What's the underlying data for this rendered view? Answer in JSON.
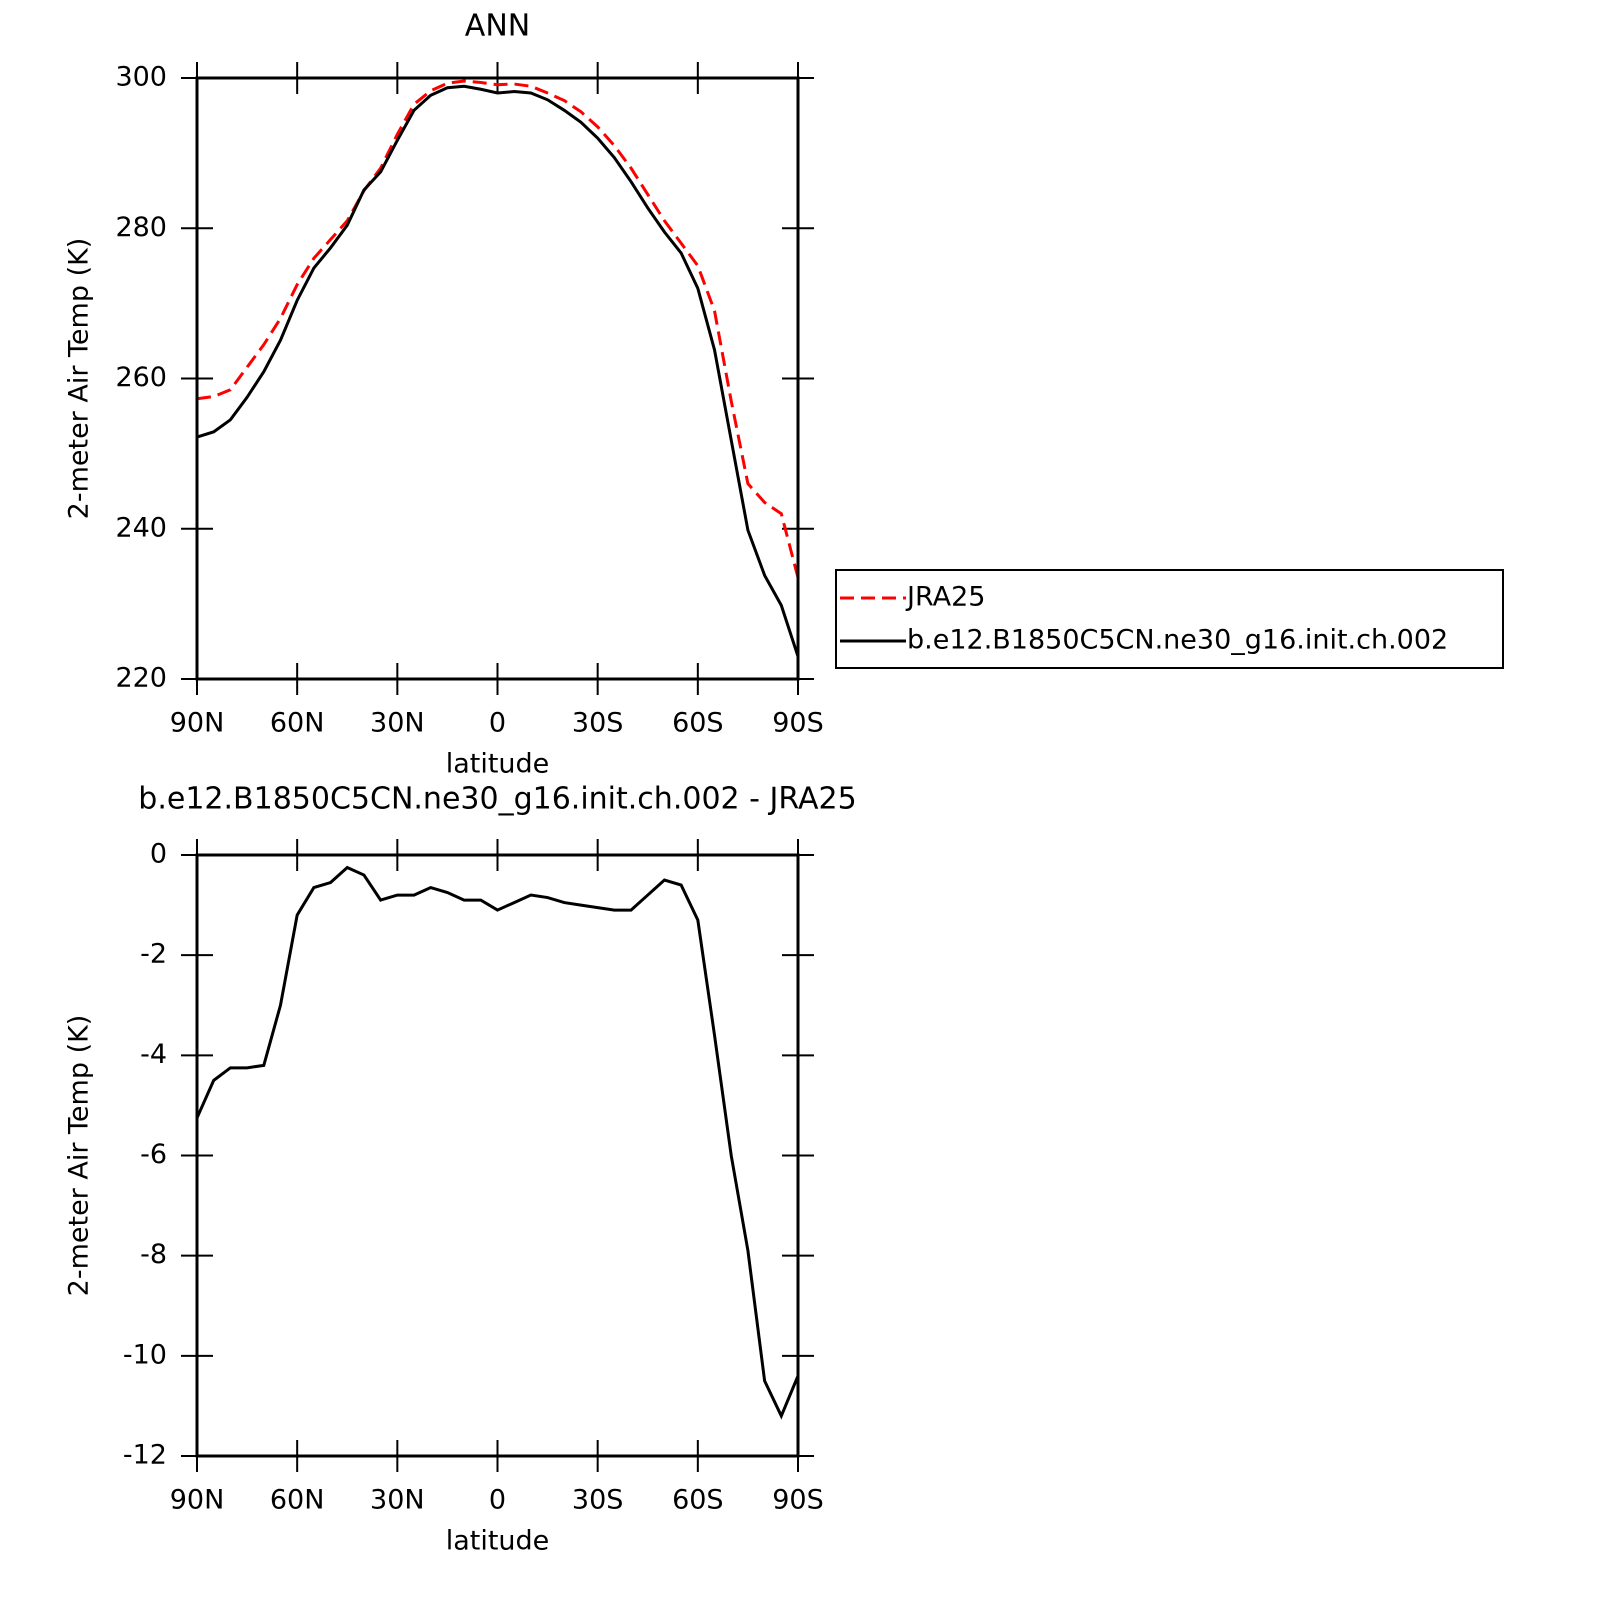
{
  "chart_data": [
    {
      "type": "line",
      "title": "ANN",
      "xlabel": "latitude",
      "ylabel": "2-meter Air Temp (K)",
      "x": [
        90,
        85,
        80,
        75,
        70,
        65,
        60,
        55,
        50,
        45,
        40,
        35,
        30,
        25,
        20,
        15,
        10,
        5,
        0,
        -5,
        -10,
        -15,
        -20,
        -25,
        -30,
        -35,
        -40,
        -45,
        -50,
        -55,
        -60,
        -65,
        -70,
        -75,
        -80,
        -85,
        -90
      ],
      "series": [
        {
          "name": "JRA25",
          "color": "#ff0000",
          "linestyle": "dashed",
          "values": [
            257.3,
            257.6,
            258.5,
            261.5,
            264.5,
            268,
            272.5,
            276,
            278.5,
            281,
            285,
            288,
            292.5,
            296.5,
            298.3,
            299.3,
            299.6,
            299.4,
            299.1,
            299.2,
            298.9,
            298,
            297,
            295.5,
            293.5,
            291,
            288,
            284.5,
            281,
            278,
            275,
            269,
            257,
            246,
            243.5,
            242,
            233.5
          ]
        },
        {
          "name": "b.e12.B1850C5CN.ne30_g16.init.ch.002",
          "color": "#000000",
          "linestyle": "solid",
          "values": [
            252.2,
            252.9,
            254.5,
            257.5,
            260.9,
            265.1,
            270.4,
            274.7,
            277.4,
            280.4,
            285.1,
            287.5,
            291.7,
            295.7,
            297.7,
            298.7,
            298.9,
            298.5,
            298,
            298.2,
            298,
            297.1,
            295.7,
            294.1,
            292,
            289.4,
            286.2,
            282.7,
            279.5,
            276.7,
            272,
            263.8,
            251.8,
            239.8,
            233.8,
            229.8,
            223
          ]
        }
      ],
      "xlim": [
        90,
        -90
      ],
      "xticks": [
        {
          "value": 90,
          "label": "90N"
        },
        {
          "value": 60,
          "label": "60N"
        },
        {
          "value": 30,
          "label": "30N"
        },
        0,
        {
          "value": -30,
          "label": "30S"
        },
        {
          "value": -60,
          "label": "60S"
        },
        {
          "value": -90,
          "label": "90S"
        }
      ],
      "ylim": [
        220,
        300
      ],
      "yticks": [
        220,
        240,
        260,
        280,
        300
      ],
      "legend": "right"
    },
    {
      "type": "line",
      "title": "b.e12.B1850C5CN.ne30_g16.init.ch.002 - JRA25",
      "xlabel": "latitude",
      "ylabel": "2-meter Air Temp (K)",
      "x": [
        90,
        85,
        80,
        75,
        70,
        65,
        60,
        55,
        50,
        45,
        40,
        35,
        30,
        25,
        20,
        15,
        10,
        5,
        0,
        -5,
        -10,
        -15,
        -20,
        -25,
        -30,
        -35,
        -40,
        -45,
        -50,
        -55,
        -60,
        -65,
        -70,
        -75,
        -80,
        -85,
        -90
      ],
      "series": [
        {
          "color": "#000000",
          "linestyle": "solid",
          "values": [
            -5.25,
            -4.5,
            -4.25,
            -4.25,
            -4.2,
            -3.0,
            -1.2,
            -0.65,
            -0.55,
            -0.25,
            -0.4,
            -0.9,
            -0.8,
            -0.8,
            -0.65,
            -0.75,
            -0.9,
            -0.9,
            -1.1,
            -0.95,
            -0.8,
            -0.85,
            -0.95,
            -1.0,
            -1.05,
            -1.1,
            -1.1,
            -0.8,
            -0.5,
            -0.6,
            -1.3,
            -3.6,
            -6.0,
            -7.9,
            -10.5,
            -11.2,
            -10.4
          ]
        }
      ],
      "xlim": [
        90,
        -90
      ],
      "xticks": [
        {
          "value": 90,
          "label": "90N"
        },
        {
          "value": 60,
          "label": "60N"
        },
        {
          "value": 30,
          "label": "30N"
        },
        0,
        {
          "value": -30,
          "label": "30S"
        },
        {
          "value": -60,
          "label": "60S"
        },
        {
          "value": -90,
          "label": "90S"
        }
      ],
      "ylim": [
        -12,
        0
      ],
      "yticks": [
        -12,
        -10,
        -8,
        -6,
        -4,
        -2,
        0
      ]
    }
  ]
}
